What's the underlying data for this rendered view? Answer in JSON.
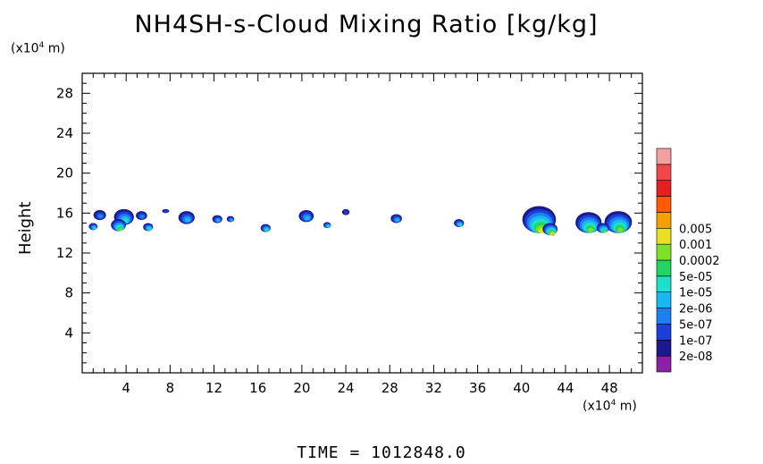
{
  "chart_data": {
    "type": "heatmap",
    "title": "NH4SH-s-Cloud Mixing Ratio [kg/kg]",
    "ylabel": "Height",
    "y_unit": {
      "prefix": "(x10",
      "exp": "4",
      "suffix": " m)"
    },
    "x_unit": {
      "prefix": "(x10",
      "exp": "4",
      "suffix": " m)"
    },
    "footer": "TIME  =  1012848.0",
    "xlim": [
      0,
      51
    ],
    "ylim": [
      0,
      30
    ],
    "x_ticks": [
      4,
      8,
      12,
      16,
      20,
      24,
      28,
      32,
      36,
      40,
      44,
      48
    ],
    "y_ticks": [
      4,
      8,
      12,
      16,
      20,
      24,
      28
    ],
    "colorbar": {
      "colors": [
        "#8b1fa8",
        "#1a1a8c",
        "#1a3fdb",
        "#1e7ff0",
        "#1ab8f0",
        "#1ee0c8",
        "#22d460",
        "#7fe02a",
        "#e8e020",
        "#f5a000",
        "#ff5a00",
        "#e62020",
        "#f04848",
        "#f4a0a0"
      ],
      "labels": [
        "2e-08",
        "1e-07",
        "5e-07",
        "2e-06",
        "1e-05",
        "5e-05",
        "0.0002",
        "0.001",
        "0.005"
      ]
    },
    "cloud_cells": [
      {
        "x": 1.6,
        "top": 16.3,
        "bottom": 15.3,
        "peak": 3
      },
      {
        "x": 1.0,
        "top": 15.0,
        "bottom": 14.3,
        "peak": 5
      },
      {
        "x": 3.8,
        "top": 16.4,
        "bottom": 14.8,
        "peak": 5
      },
      {
        "x": 3.3,
        "top": 15.4,
        "bottom": 14.2,
        "peak": 7
      },
      {
        "x": 5.4,
        "top": 16.2,
        "bottom": 15.3,
        "peak": 3
      },
      {
        "x": 6.0,
        "top": 15.0,
        "bottom": 14.2,
        "peak": 6
      },
      {
        "x": 7.6,
        "top": 16.4,
        "bottom": 16.0,
        "peak": 2
      },
      {
        "x": 9.5,
        "top": 16.2,
        "bottom": 14.9,
        "peak": 4
      },
      {
        "x": 12.3,
        "top": 15.8,
        "bottom": 15.0,
        "peak": 4
      },
      {
        "x": 13.5,
        "top": 15.7,
        "bottom": 15.1,
        "peak": 4
      },
      {
        "x": 16.7,
        "top": 14.9,
        "bottom": 14.1,
        "peak": 6
      },
      {
        "x": 20.4,
        "top": 16.3,
        "bottom": 15.1,
        "peak": 4
      },
      {
        "x": 22.3,
        "top": 15.1,
        "bottom": 14.5,
        "peak": 6
      },
      {
        "x": 24.0,
        "top": 16.4,
        "bottom": 15.8,
        "peak": 2
      },
      {
        "x": 28.6,
        "top": 15.9,
        "bottom": 15.0,
        "peak": 4
      },
      {
        "x": 34.3,
        "top": 15.4,
        "bottom": 14.6,
        "peak": 5
      },
      {
        "x": 41.6,
        "top": 16.7,
        "bottom": 14.0,
        "peak": 8
      },
      {
        "x": 42.6,
        "top": 15.0,
        "bottom": 13.8,
        "peak": 9
      },
      {
        "x": 46.1,
        "top": 16.1,
        "bottom": 14.0,
        "peak": 7
      },
      {
        "x": 48.8,
        "top": 16.2,
        "bottom": 14.0,
        "peak": 7
      },
      {
        "x": 47.4,
        "top": 15.0,
        "bottom": 14.0,
        "peak": 7
      }
    ]
  }
}
